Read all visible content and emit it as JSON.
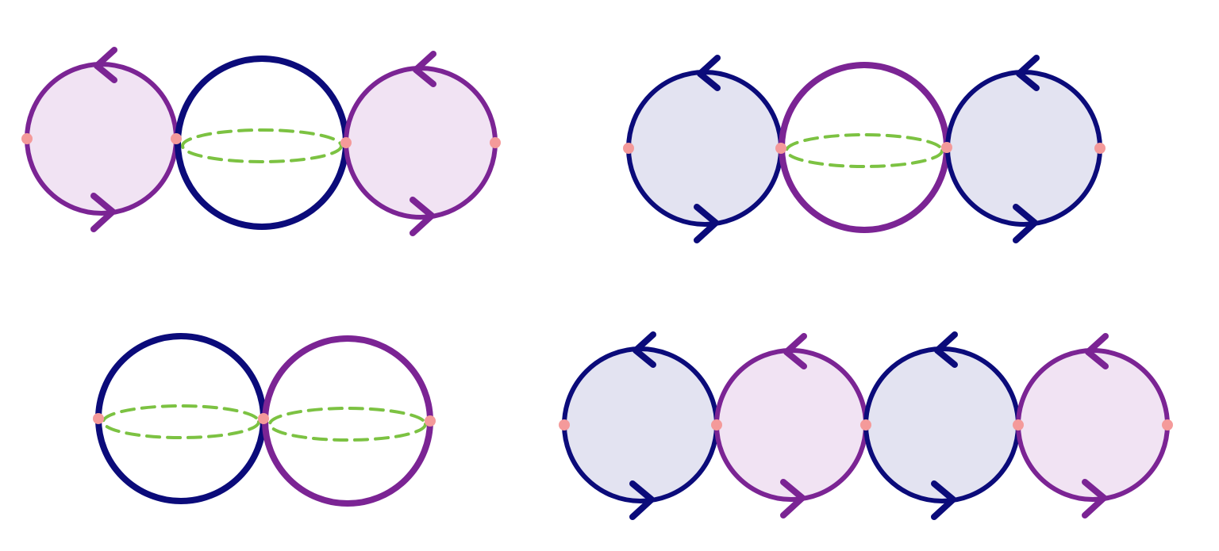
{
  "colors": {
    "navy": "#0b0b7a",
    "purple": "#7b2494",
    "navy_fill": "#e3e3f1",
    "purple_fill": "#f1e3f3",
    "dot": "#f49a9a",
    "dash": "#7cc242",
    "background": "#ffffff"
  },
  "groups": [
    {
      "name": "top-left-chain",
      "spheres": [
        {
          "color": "purple",
          "filled": true,
          "arrows": true
        },
        {
          "color": "navy",
          "filled": false,
          "arrows": false,
          "equator": true
        },
        {
          "color": "purple",
          "filled": true,
          "arrows": true
        }
      ]
    },
    {
      "name": "top-right-chain",
      "spheres": [
        {
          "color": "navy",
          "filled": true,
          "arrows": true
        },
        {
          "color": "purple",
          "filled": false,
          "arrows": false,
          "equator": true
        },
        {
          "color": "navy",
          "filled": true,
          "arrows": true
        }
      ]
    },
    {
      "name": "bottom-left-chain",
      "spheres": [
        {
          "color": "navy",
          "filled": false,
          "arrows": false,
          "equator": true
        },
        {
          "color": "purple",
          "filled": false,
          "arrows": false,
          "equator": true
        }
      ]
    },
    {
      "name": "bottom-right-chain",
      "spheres": [
        {
          "color": "navy",
          "filled": true,
          "arrows": true
        },
        {
          "color": "purple",
          "filled": true,
          "arrows": true
        },
        {
          "color": "navy",
          "filled": true,
          "arrows": true
        },
        {
          "color": "purple",
          "filled": true,
          "arrows": true
        }
      ]
    }
  ]
}
